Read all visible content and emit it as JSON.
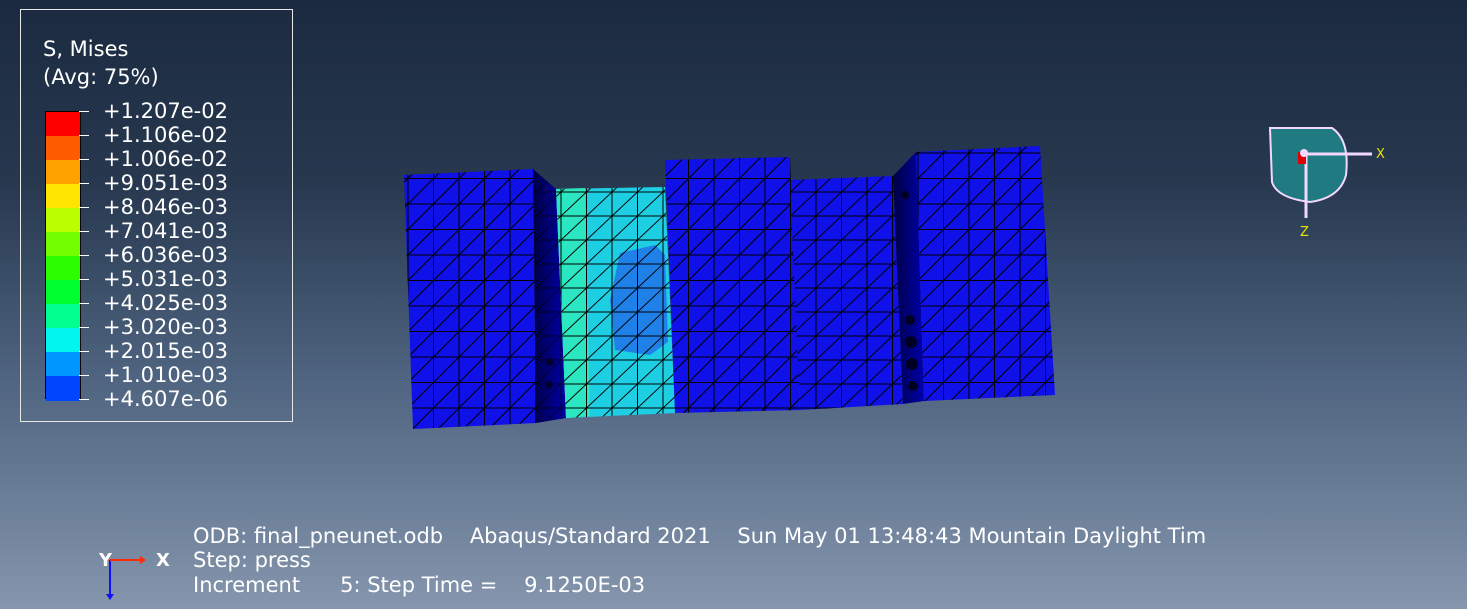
{
  "legend": {
    "title": "S, Mises",
    "subtitle": "(Avg: 75%)",
    "levels": [
      {
        "label": "+1.207e-02",
        "color": "#ff0000"
      },
      {
        "label": "+1.106e-02",
        "color": "#ff5c00"
      },
      {
        "label": "+1.006e-02",
        "color": "#ffa200"
      },
      {
        "label": "+9.051e-03",
        "color": "#ffe400"
      },
      {
        "label": "+8.046e-03",
        "color": "#b9ff00"
      },
      {
        "label": "+7.041e-03",
        "color": "#73ff00"
      },
      {
        "label": "+6.036e-03",
        "color": "#2eff00"
      },
      {
        "label": "+5.031e-03",
        "color": "#00ff2e"
      },
      {
        "label": "+4.025e-03",
        "color": "#00ff8e"
      },
      {
        "label": "+3.020e-03",
        "color": "#00f6ee"
      },
      {
        "label": "+2.015e-03",
        "color": "#0096ff"
      },
      {
        "label": "+1.010e-03",
        "color": "#0046ff"
      },
      {
        "label": "+4.607e-06",
        "color": "#0000ff"
      }
    ]
  },
  "info": {
    "line1": "ODB: final_pneunet.odb    Abaqus/Standard 2021    Sun May 01 13:48:43 Mountain Daylight Tim",
    "line2": "Step: press",
    "line3": "Increment      5: Step Time =    9.1250E-03"
  },
  "triad": {
    "x": "X",
    "z": "Z"
  },
  "global_axis": {
    "y": "Y",
    "x": "X"
  },
  "colors": {
    "mesh_blue": "#1212f0",
    "mesh_cyan": "#1cdce0",
    "mesh_light_blue": "#1f8fe8",
    "triad_fill": "#1f7a82",
    "triad_stroke": "#f2d8ff",
    "triad_label": "#e6e600"
  }
}
